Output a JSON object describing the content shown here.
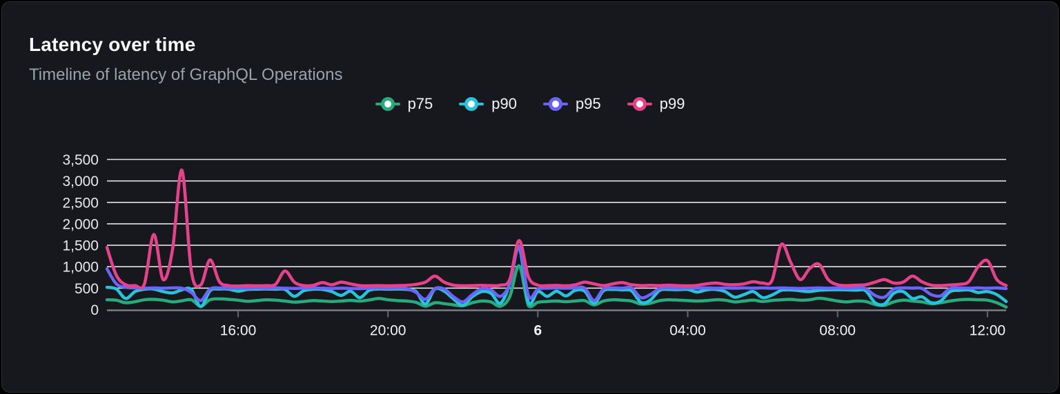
{
  "page": {
    "background": "#000000"
  },
  "card": {
    "background": "#16181d",
    "border_color": "#2c2f36"
  },
  "chart_data": {
    "type": "line",
    "title": "Latency over time",
    "subtitle": "Timeline of latency of GraphQL Operations",
    "grid": "horizontal",
    "legend_position": "top-center",
    "colors": {
      "grid_line": "#e3e4e7",
      "axis_line": "#7a7d84",
      "tick_mark": "#63666d",
      "axis_text": "#e7e9ec",
      "title_text": "#fafafa",
      "subtitle_text": "#9aa3ad"
    },
    "y_axis": {
      "min": 0,
      "max": 3500,
      "tick_step": 500,
      "tick_labels": [
        "0",
        "500",
        "1,000",
        "1,500",
        "2,000",
        "2,500",
        "3,000",
        "3,500"
      ]
    },
    "x_axis": {
      "unit": "time-of-day",
      "bucket_minutes": 15,
      "ticks": [
        {
          "label": "16:00",
          "index": 14,
          "bold": false
        },
        {
          "label": "20:00",
          "index": 30,
          "bold": false
        },
        {
          "label": "6",
          "index": 46,
          "bold": true
        },
        {
          "label": "04:00",
          "index": 62,
          "bold": false
        },
        {
          "label": "08:00",
          "index": 78,
          "bold": false
        },
        {
          "label": "12:00",
          "index": 94,
          "bold": false
        }
      ]
    },
    "series": [
      {
        "name": "p75",
        "color": "#27ab7d",
        "values": [
          230,
          220,
          160,
          185,
          230,
          240,
          220,
          180,
          205,
          230,
          80,
          230,
          250,
          240,
          220,
          195,
          210,
          230,
          220,
          200,
          175,
          190,
          210,
          200,
          190,
          200,
          215,
          200,
          225,
          260,
          230,
          210,
          200,
          170,
          80,
          160,
          140,
          110,
          90,
          160,
          200,
          180,
          80,
          300,
          1020,
          90,
          170,
          190,
          200,
          185,
          200,
          210,
          110,
          200,
          230,
          220,
          200,
          130,
          150,
          210,
          230,
          220,
          210,
          200,
          210,
          230,
          220,
          180,
          200,
          220,
          190,
          215,
          230,
          240,
          220,
          230,
          265,
          240,
          200,
          180,
          200,
          190,
          120,
          100,
          180,
          220,
          200,
          180,
          140,
          160,
          200,
          230,
          240,
          230,
          220,
          160,
          60
        ]
      },
      {
        "name": "p90",
        "color": "#27c3dc",
        "values": [
          520,
          480,
          260,
          420,
          475,
          480,
          420,
          390,
          460,
          470,
          70,
          440,
          480,
          475,
          430,
          470,
          475,
          480,
          475,
          470,
          310,
          440,
          475,
          470,
          420,
          330,
          430,
          280,
          450,
          480,
          475,
          480,
          470,
          420,
          130,
          480,
          430,
          250,
          100,
          300,
          420,
          380,
          150,
          600,
          1450,
          160,
          420,
          310,
          430,
          320,
          450,
          430,
          150,
          440,
          470,
          460,
          440,
          170,
          220,
          450,
          470,
          465,
          470,
          410,
          460,
          470,
          420,
          290,
          350,
          420,
          280,
          340,
          450,
          460,
          440,
          420,
          450,
          460,
          465,
          460,
          455,
          440,
          160,
          130,
          380,
          420,
          260,
          300,
          160,
          200,
          420,
          450,
          460,
          400,
          420,
          350,
          190
        ]
      },
      {
        "name": "p95",
        "color": "#6b64f6",
        "values": [
          950,
          600,
          520,
          505,
          500,
          505,
          500,
          505,
          500,
          400,
          210,
          480,
          505,
          500,
          505,
          500,
          505,
          500,
          505,
          500,
          495,
          500,
          505,
          500,
          495,
          500,
          495,
          490,
          500,
          505,
          500,
          505,
          490,
          400,
          240,
          490,
          480,
          300,
          180,
          350,
          490,
          460,
          310,
          600,
          1480,
          320,
          480,
          500,
          505,
          500,
          505,
          500,
          210,
          480,
          505,
          500,
          505,
          280,
          350,
          490,
          505,
          500,
          505,
          500,
          505,
          500,
          505,
          500,
          505,
          500,
          505,
          500,
          505,
          500,
          495,
          500,
          505,
          500,
          505,
          500,
          505,
          490,
          330,
          290,
          480,
          505,
          500,
          495,
          350,
          320,
          490,
          505,
          500,
          505,
          500,
          505,
          490
        ]
      },
      {
        "name": "p99",
        "color": "#e6428b",
        "values": [
          1450,
          800,
          580,
          560,
          600,
          1750,
          700,
          1400,
          3250,
          900,
          570,
          1160,
          650,
          560,
          550,
          560,
          555,
          560,
          590,
          900,
          640,
          560,
          565,
          630,
          580,
          640,
          600,
          560,
          555,
          560,
          555,
          560,
          565,
          590,
          640,
          780,
          640,
          570,
          555,
          560,
          565,
          560,
          570,
          700,
          1610,
          760,
          570,
          560,
          565,
          555,
          580,
          640,
          600,
          560,
          600,
          630,
          580,
          560,
          565,
          560,
          570,
          560,
          555,
          565,
          600,
          620,
          590,
          580,
          600,
          650,
          620,
          680,
          1520,
          1100,
          700,
          950,
          1060,
          700,
          580,
          560,
          570,
          580,
          640,
          700,
          620,
          640,
          780,
          650,
          570,
          560,
          575,
          590,
          650,
          1000,
          1140,
          700,
          560
        ]
      }
    ]
  }
}
